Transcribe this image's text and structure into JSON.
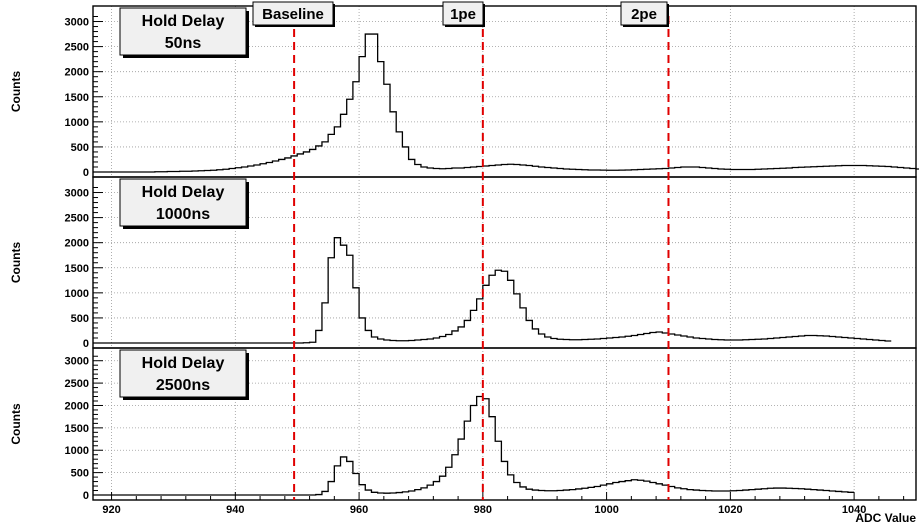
{
  "chart_data": {
    "type": "histogram",
    "xlabel": "ADC Value",
    "ylabel": "Counts",
    "xlim": [
      917,
      1050
    ],
    "ylim": [
      0,
      3150
    ],
    "x_ticks": [
      "920",
      "940",
      "960",
      "980",
      "1000",
      "1020",
      "1040"
    ],
    "x_tick_values": [
      920,
      940,
      960,
      980,
      1000,
      1020,
      1040
    ],
    "y_ticks": [
      "0",
      "500",
      "1000",
      "1500",
      "2000",
      "2500",
      "3000"
    ],
    "y_tick_values": [
      0,
      500,
      1000,
      1500,
      2000,
      2500,
      3000
    ],
    "grid": true,
    "bin_start": 917,
    "bin_width": 1,
    "colors": {
      "line": "#000000",
      "marker": "#e00000",
      "grid": "#9a9a9a",
      "label_box": "#f0f0f0"
    },
    "markers": [
      {
        "label": "Baseline",
        "x": 949.5
      },
      {
        "label": "1pe",
        "x": 980
      },
      {
        "label": "2pe",
        "x": 1010
      }
    ],
    "panels": [
      {
        "label_lines": [
          "Hold Delay",
          "50ns"
        ],
        "values": [
          0,
          0,
          0,
          0,
          0,
          0,
          0,
          0,
          0,
          0,
          5,
          5,
          10,
          10,
          15,
          15,
          20,
          25,
          30,
          35,
          45,
          55,
          70,
          85,
          100,
          120,
          140,
          165,
          190,
          220,
          250,
          280,
          320,
          360,
          400,
          450,
          520,
          600,
          750,
          900,
          1150,
          1450,
          1800,
          2300,
          2750,
          2750,
          2200,
          1750,
          1200,
          800,
          500,
          250,
          150,
          100,
          80,
          70,
          65,
          70,
          80,
          80,
          90,
          100,
          110,
          120,
          130,
          140,
          150,
          155,
          150,
          140,
          130,
          115,
          100,
          90,
          80,
          70,
          60,
          55,
          50,
          45,
          40,
          40,
          38,
          35,
          35,
          38,
          40,
          45,
          50,
          55,
          60,
          65,
          70,
          80,
          90,
          100,
          100,
          100,
          90,
          80,
          70,
          60,
          55,
          50,
          50,
          50,
          50,
          55,
          60,
          65,
          70,
          75,
          80,
          90,
          95,
          100,
          105,
          110,
          115,
          120,
          125,
          130,
          130,
          130,
          130,
          125,
          120,
          115,
          110,
          100,
          90,
          80,
          70,
          60,
          55,
          50,
          40,
          30,
          20
        ]
      },
      {
        "label_lines": [
          "Hold Delay",
          "1000ns"
        ],
        "values": [
          0,
          0,
          0,
          0,
          0,
          0,
          0,
          0,
          0,
          0,
          0,
          0,
          0,
          0,
          0,
          0,
          0,
          0,
          0,
          0,
          0,
          0,
          0,
          0,
          0,
          0,
          0,
          0,
          0,
          0,
          0,
          0,
          0,
          0,
          5,
          15,
          250,
          800,
          1700,
          2100,
          1950,
          1750,
          1100,
          500,
          250,
          120,
          80,
          60,
          50,
          45,
          45,
          50,
          60,
          70,
          80,
          100,
          130,
          170,
          240,
          320,
          450,
          650,
          880,
          1150,
          1350,
          1450,
          1430,
          1250,
          980,
          700,
          450,
          280,
          180,
          120,
          90,
          75,
          70,
          65,
          65,
          70,
          75,
          80,
          90,
          100,
          110,
          120,
          135,
          150,
          170,
          190,
          210,
          220,
          200,
          180,
          160,
          140,
          120,
          100,
          90,
          80,
          70,
          65,
          60,
          60,
          60,
          65,
          70,
          75,
          80,
          90,
          100,
          110,
          120,
          130,
          140,
          150,
          150,
          145,
          140,
          130,
          120,
          110,
          100,
          90,
          80,
          70,
          60,
          50,
          40
        ]
      },
      {
        "label_lines": [
          "Hold Delay",
          "2500ns"
        ],
        "values": [
          0,
          0,
          0,
          0,
          0,
          0,
          0,
          0,
          0,
          0,
          0,
          0,
          0,
          0,
          0,
          0,
          0,
          0,
          0,
          0,
          0,
          0,
          0,
          0,
          0,
          0,
          0,
          0,
          0,
          0,
          0,
          0,
          0,
          0,
          0,
          0,
          10,
          80,
          300,
          650,
          850,
          750,
          480,
          230,
          110,
          60,
          45,
          40,
          45,
          55,
          70,
          90,
          120,
          160,
          220,
          300,
          420,
          620,
          900,
          1250,
          1650,
          2000,
          2200,
          2150,
          1750,
          1200,
          750,
          450,
          280,
          180,
          130,
          110,
          100,
          95,
          95,
          100,
          110,
          120,
          135,
          150,
          170,
          190,
          220,
          250,
          280,
          300,
          320,
          340,
          330,
          310,
          280,
          250,
          220,
          190,
          160,
          140,
          120,
          110,
          100,
          95,
          90,
          90,
          90,
          95,
          100,
          110,
          120,
          130,
          140,
          150,
          155,
          155,
          150,
          145,
          140,
          130,
          120,
          110,
          100,
          90,
          80,
          70,
          60
        ]
      }
    ]
  }
}
